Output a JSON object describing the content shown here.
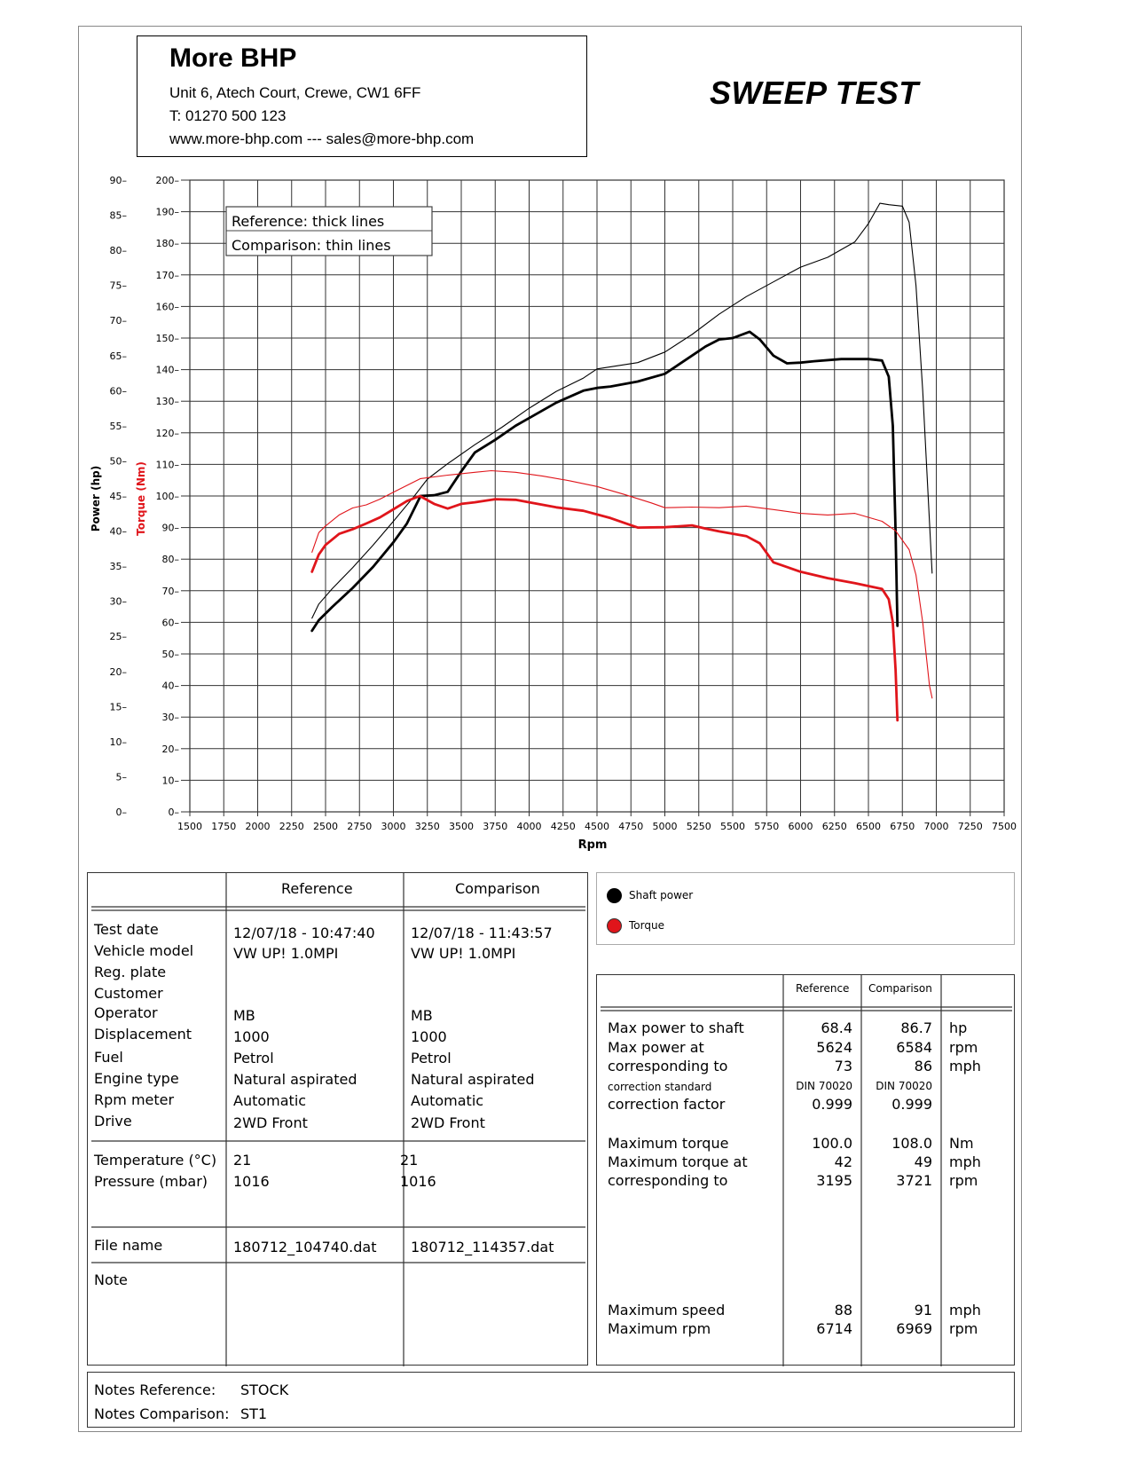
{
  "header": {
    "company": "More BHP",
    "address": "Unit 6, Atech Court, Crewe, CW1 6FF",
    "phone": "T: 01270 500 123",
    "web": "www.more-bhp.com --- sales@more-bhp.com",
    "title": "SWEEP TEST"
  },
  "chart_data": {
    "type": "line",
    "xlabel": "Rpm",
    "ylabel_power": "Power (hp)",
    "ylabel_torque": "Torque (Nm)",
    "x_ticks": [
      1500,
      1750,
      2000,
      2250,
      2500,
      2750,
      3000,
      3250,
      3500,
      3750,
      4000,
      4250,
      4500,
      4750,
      5000,
      5250,
      5500,
      5750,
      6000,
      6250,
      6500,
      6750,
      7000,
      7250,
      7500
    ],
    "power_ticks": [
      0,
      5,
      10,
      15,
      20,
      25,
      30,
      35,
      40,
      45,
      50,
      55,
      60,
      65,
      70,
      75,
      80,
      85,
      90
    ],
    "torque_ticks": [
      0,
      10,
      20,
      30,
      40,
      50,
      60,
      70,
      80,
      90,
      100,
      110,
      120,
      130,
      140,
      150,
      160,
      170,
      180,
      190,
      200
    ],
    "xlim": [
      1500,
      7500
    ],
    "power_ylim": [
      0,
      90
    ],
    "torque_ylim": [
      0,
      200
    ],
    "grid": true,
    "legend": [
      "Reference: thick lines",
      "Comparison: thin lines"
    ],
    "series": [
      {
        "name": "Shaft power",
        "run": "Reference",
        "axis": "power",
        "color": "#000000",
        "thick": true,
        "x": [
          2400,
          2450,
          2550,
          2700,
          2850,
          3000,
          3100,
          3200,
          3300,
          3400,
          3500,
          3600,
          3750,
          3900,
          4000,
          4200,
          4400,
          4500,
          4600,
          4800,
          5000,
          5100,
          5200,
          5300,
          5400,
          5500,
          5624,
          5700,
          5800,
          5900,
          6000,
          6100,
          6300,
          6500,
          6600,
          6650,
          6680,
          6700,
          6714
        ],
        "y": [
          25.8,
          27.3,
          29.2,
          31.9,
          34.9,
          38.4,
          41.1,
          45.0,
          45.1,
          45.6,
          48.5,
          51.2,
          53.0,
          55.0,
          56.1,
          58.3,
          60.0,
          60.4,
          60.6,
          61.3,
          62.4,
          63.7,
          65.0,
          66.3,
          67.3,
          67.5,
          68.4,
          67.3,
          65.0,
          63.9,
          64.0,
          64.2,
          64.5,
          64.5,
          64.3,
          62.0,
          55.0,
          40.0,
          26.5
        ]
      },
      {
        "name": "Shaft power",
        "run": "Comparison",
        "axis": "power",
        "color": "#000000",
        "thick": false,
        "x": [
          2400,
          2450,
          2550,
          2700,
          2850,
          3000,
          3150,
          3250,
          3400,
          3600,
          3800,
          4000,
          4200,
          4400,
          4500,
          4600,
          4800,
          5000,
          5200,
          5400,
          5600,
          5800,
          6000,
          6200,
          6400,
          6500,
          6584,
          6650,
          6750,
          6800,
          6850,
          6900,
          6969
        ],
        "y": [
          27.6,
          29.6,
          31.8,
          34.8,
          38.0,
          41.4,
          44.9,
          47.4,
          49.6,
          52.3,
          54.8,
          57.5,
          59.9,
          61.8,
          63.1,
          63.4,
          64.0,
          65.5,
          68.0,
          70.9,
          73.4,
          75.5,
          77.6,
          79.0,
          81.2,
          83.8,
          86.7,
          86.5,
          86.3,
          84.0,
          75.0,
          60.0,
          34.0
        ]
      },
      {
        "name": "Torque",
        "run": "Reference",
        "axis": "torque",
        "color": "#e0151b",
        "thick": true,
        "x": [
          2400,
          2450,
          2500,
          2600,
          2700,
          2800,
          2900,
          3000,
          3100,
          3195,
          3300,
          3400,
          3500,
          3600,
          3750,
          3900,
          4000,
          4200,
          4400,
          4600,
          4800,
          5000,
          5200,
          5300,
          5400,
          5600,
          5700,
          5800,
          6000,
          6200,
          6400,
          6600,
          6650,
          6680,
          6700,
          6714
        ],
        "y": [
          76.0,
          81.5,
          84.5,
          88.0,
          89.5,
          91.3,
          93.2,
          95.8,
          98.4,
          100.0,
          97.5,
          96.0,
          97.5,
          98.0,
          99.0,
          98.8,
          98.0,
          96.4,
          95.3,
          93.0,
          90.0,
          90.1,
          90.7,
          89.7,
          88.8,
          87.3,
          85.0,
          79.0,
          76.0,
          74.0,
          72.4,
          70.6,
          67.3,
          60.0,
          45.0,
          29.0
        ]
      },
      {
        "name": "Torque",
        "run": "Comparison",
        "axis": "torque",
        "color": "#e0151b",
        "thick": false,
        "x": [
          2400,
          2450,
          2500,
          2600,
          2700,
          2800,
          2900,
          3000,
          3200,
          3400,
          3600,
          3721,
          3900,
          4100,
          4300,
          4500,
          4700,
          4900,
          5000,
          5200,
          5400,
          5600,
          5800,
          6000,
          6200,
          6400,
          6600,
          6700,
          6800,
          6850,
          6900,
          6950,
          6969
        ],
        "y": [
          82.2,
          88.4,
          90.5,
          94.0,
          96.2,
          97.2,
          99.0,
          101.2,
          105.5,
          106.6,
          107.5,
          108.0,
          107.5,
          106.3,
          104.8,
          103.0,
          100.5,
          97.8,
          96.3,
          96.5,
          96.3,
          96.8,
          95.7,
          94.5,
          94.0,
          94.5,
          92.0,
          89.0,
          83.0,
          75.0,
          60.0,
          40.0,
          36.0
        ]
      }
    ]
  },
  "legend_box": {
    "thick": "Reference: thick lines",
    "thin": "Comparison: thin lines"
  },
  "series_legend": {
    "power": "Shaft power",
    "torque": "Torque"
  },
  "info_table": {
    "col_reference": "Reference",
    "col_comparison": "Comparison",
    "labels": {
      "test_date": "Test date",
      "vehicle_model": "Vehicle model",
      "reg_plate": "Reg. plate",
      "customer": "Customer",
      "operator": "Operator",
      "displacement": "Displacement",
      "fuel": "Fuel",
      "engine_type": "Engine type",
      "rpm_meter": "Rpm meter",
      "drive": "Drive",
      "temperature": "Temperature (°C)",
      "pressure": "Pressure (mbar)",
      "file_name": "File name",
      "note": "Note"
    },
    "reference": {
      "test_date": "12/07/18 - 10:47:40",
      "vehicle_model": "VW UP! 1.0MPI",
      "operator": "MB",
      "displacement": "1000",
      "fuel": "Petrol",
      "engine_type": "Natural aspirated",
      "rpm_meter": "Automatic",
      "drive": "2WD Front",
      "temperature": "21",
      "pressure": "1016",
      "file_name": "180712_104740.dat"
    },
    "comparison": {
      "test_date": "12/07/18 - 11:43:57",
      "vehicle_model": "VW UP! 1.0MPI",
      "operator": "MB",
      "displacement": "1000",
      "fuel": "Petrol",
      "engine_type": "Natural aspirated",
      "rpm_meter": "Automatic",
      "drive": "2WD Front",
      "temperature": "21",
      "pressure": "1016",
      "file_name": "180712_114357.dat"
    }
  },
  "results": {
    "col_reference": "Reference",
    "col_comparison": "Comparison",
    "rows": [
      {
        "label": "Max power to shaft",
        "ref": "68.4",
        "cmp": "86.7",
        "unit": "hp"
      },
      {
        "label": "Max power at",
        "ref": "5624",
        "cmp": "6584",
        "unit": "rpm"
      },
      {
        "label": "corresponding to",
        "ref": "73",
        "cmp": "86",
        "unit": "mph"
      },
      {
        "label": "correction standard",
        "ref": "DIN 70020",
        "cmp": "DIN 70020",
        "unit": ""
      },
      {
        "label": "correction factor",
        "ref": "0.999",
        "cmp": "0.999",
        "unit": ""
      },
      {
        "label": "Maximum torque",
        "ref": "100.0",
        "cmp": "108.0",
        "unit": "Nm"
      },
      {
        "label": "Maximum torque at",
        "ref": "42",
        "cmp": "49",
        "unit": "mph"
      },
      {
        "label": "corresponding to",
        "ref": "3195",
        "cmp": "3721",
        "unit": "rpm"
      },
      {
        "label": "Maximum speed",
        "ref": "88",
        "cmp": "91",
        "unit": "mph"
      },
      {
        "label": "Maximum rpm",
        "ref": "6714",
        "cmp": "6969",
        "unit": "rpm"
      }
    ]
  },
  "notes": {
    "ref_label": "Notes Reference:",
    "ref_value": "STOCK",
    "cmp_label": "Notes Comparison:",
    "cmp_value": "ST1"
  }
}
